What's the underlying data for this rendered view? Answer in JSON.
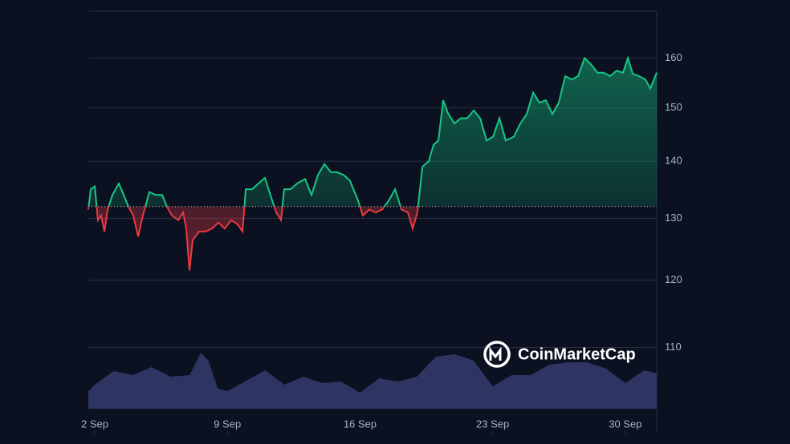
{
  "chart_data": {
    "type": "line",
    "x": [
      1.66,
      1.79,
      2.0,
      2.17,
      2.34,
      2.51,
      2.68,
      2.93,
      3.27,
      3.53,
      3.78,
      4.03,
      4.29,
      4.54,
      4.88,
      5.22,
      5.56,
      5.81,
      6.07,
      6.41,
      6.66,
      6.83,
      7.0,
      7.17,
      7.51,
      7.85,
      8.19,
      8.53,
      8.86,
      9.2,
      9.54,
      9.8,
      9.97,
      10.31,
      10.64,
      10.98,
      11.32,
      11.58,
      11.83,
      12.0,
      12.34,
      12.68,
      13.1,
      13.44,
      13.78,
      14.12,
      14.46,
      14.8,
      15.14,
      15.47,
      15.9,
      16.15,
      16.49,
      16.83,
      17.17,
      17.51,
      17.85,
      18.19,
      18.53,
      18.78,
      19.03,
      19.29,
      19.63,
      19.88,
      20.14,
      20.39,
      20.64,
      20.98,
      21.32,
      21.66,
      22.0,
      22.34,
      22.68,
      23.02,
      23.36,
      23.69,
      24.12,
      24.46,
      24.8,
      25.14,
      25.47,
      25.81,
      26.15,
      26.49,
      26.83,
      27.17,
      27.51,
      27.85,
      28.19,
      28.53,
      28.86,
      29.2,
      29.54,
      29.88,
      30.14,
      30.39,
      30.73,
      31.07,
      31.32,
      31.66
    ],
    "values": [
      131.5,
      135,
      135.5,
      129.7,
      130.5,
      127.8,
      131.5,
      134,
      136,
      134,
      132,
      130.5,
      127,
      130.5,
      134.5,
      134,
      134,
      132,
      130.5,
      129.7,
      131,
      128.3,
      121.5,
      126.4,
      127.8,
      127.8,
      128.3,
      129.3,
      128.3,
      129.7,
      129,
      127.8,
      135,
      135,
      136,
      137,
      133.5,
      131,
      129.7,
      135,
      135,
      136,
      136.8,
      134,
      137.5,
      139.5,
      138,
      138,
      137.5,
      136.5,
      133,
      130.5,
      131.5,
      131,
      131.5,
      133,
      135,
      131.5,
      131,
      128.3,
      131,
      139,
      140,
      143,
      143.8,
      151.5,
      149,
      147,
      148,
      148,
      149.5,
      148,
      143.8,
      144.5,
      148,
      143.8,
      144.5,
      147,
      148.8,
      153,
      151,
      151.5,
      148.8,
      151,
      156.3,
      155.6,
      156.3,
      160,
      158.7,
      157,
      157,
      156.3,
      157.4,
      157,
      160,
      156.8,
      156.3,
      155.6,
      153.8,
      157
    ],
    "baseline": 132,
    "up_color": "#16c784",
    "down_color": "#ea3943",
    "ylim": [
      101.6,
      170
    ],
    "yticks": [
      110,
      120,
      130,
      140,
      150,
      160
    ],
    "log_scale": true,
    "xlim": [
      1.66,
      31.66
    ],
    "xticks": [
      {
        "value": 2,
        "label": "2 Sep"
      },
      {
        "value": 9,
        "label": "9 Sep"
      },
      {
        "value": 16,
        "label": "16 Sep"
      },
      {
        "value": 23,
        "label": "23 Sep"
      },
      {
        "value": 30,
        "label": "30 Sep"
      }
    ],
    "grid": true,
    "volume": {
      "color": "#2e3562",
      "x": [
        1.66,
        2,
        3,
        4,
        5,
        6,
        7,
        7.6,
        8,
        8.5,
        9,
        10,
        11,
        12,
        13,
        14,
        15,
        16,
        17,
        18,
        19,
        20,
        21,
        22,
        23,
        24,
        25,
        26,
        27,
        28,
        29,
        30,
        31,
        31.66
      ],
      "values": [
        22,
        30,
        47,
        42,
        52,
        40,
        42,
        70,
        60,
        25,
        22,
        35,
        48,
        30,
        40,
        32,
        34,
        20,
        38,
        34,
        40,
        65,
        68,
        60,
        28,
        42,
        42,
        55,
        58,
        58,
        50,
        32,
        48,
        44
      ],
      "ylim": [
        0,
        100
      ]
    },
    "watermark": "CoinMarketCap"
  }
}
